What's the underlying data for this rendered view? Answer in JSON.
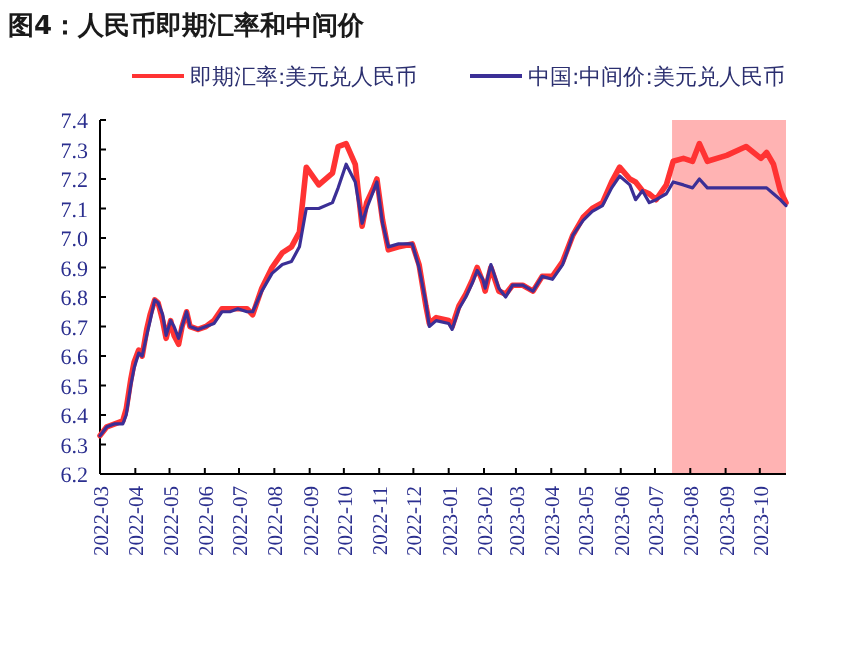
{
  "chart_data": {
    "type": "line",
    "title": "图4：人民币即期汇率和中间价",
    "x": [
      "2022-03-01",
      "2022-03-07",
      "2022-03-14",
      "2022-03-21",
      "2022-03-24",
      "2022-03-28",
      "2022-03-31",
      "2022-04-04",
      "2022-04-07",
      "2022-04-11",
      "2022-04-14",
      "2022-04-18",
      "2022-04-21",
      "2022-04-25",
      "2022-04-28",
      "2022-05-02",
      "2022-05-05",
      "2022-05-09",
      "2022-05-12",
      "2022-05-16",
      "2022-05-19",
      "2022-05-26",
      "2022-06-02",
      "2022-06-09",
      "2022-06-16",
      "2022-06-23",
      "2022-06-30",
      "2022-07-08",
      "2022-07-13",
      "2022-07-21",
      "2022-07-30",
      "2022-08-08",
      "2022-08-16",
      "2022-08-23",
      "2022-08-29",
      "2022-09-09",
      "2022-09-21",
      "2022-09-26",
      "2022-10-03",
      "2022-10-11",
      "2022-10-17",
      "2022-10-21",
      "2022-10-27",
      "2022-10-30",
      "2022-11-04",
      "2022-11-09",
      "2022-11-18",
      "2022-11-30",
      "2022-12-06",
      "2022-12-12",
      "2022-12-15",
      "2022-12-21",
      "2023-01-01",
      "2023-01-04",
      "2023-01-10",
      "2023-01-16",
      "2023-01-22",
      "2023-01-26",
      "2023-01-31",
      "2023-02-02",
      "2023-02-07",
      "2023-02-14",
      "2023-02-20",
      "2023-02-26",
      "2023-03-07",
      "2023-03-16",
      "2023-03-24",
      "2023-04-02",
      "2023-04-11",
      "2023-04-20",
      "2023-04-29",
      "2023-05-07",
      "2023-05-16",
      "2023-05-24",
      "2023-05-31",
      "2023-06-09",
      "2023-06-14",
      "2023-06-20",
      "2023-06-26",
      "2023-07-02",
      "2023-07-11",
      "2023-07-17",
      "2023-07-26",
      "2023-08-03",
      "2023-08-09",
      "2023-08-16",
      "2023-09-02",
      "2023-09-19",
      "2023-10-02",
      "2023-10-07",
      "2023-10-13",
      "2023-10-19",
      "2023-10-24"
    ],
    "series": [
      {
        "name": "即期汇率:美元兑人民币",
        "color": "#ff3333",
        "values": [
          6.33,
          6.36,
          6.37,
          6.38,
          6.42,
          6.52,
          6.58,
          6.62,
          6.6,
          6.69,
          6.74,
          6.79,
          6.78,
          6.72,
          6.66,
          6.72,
          6.67,
          6.64,
          6.7,
          6.75,
          6.7,
          6.69,
          6.7,
          6.72,
          6.76,
          6.76,
          6.76,
          6.76,
          6.74,
          6.83,
          6.9,
          6.95,
          6.97,
          7.02,
          7.24,
          7.18,
          7.22,
          7.31,
          7.32,
          7.25,
          7.04,
          7.12,
          7.17,
          7.2,
          7.06,
          6.96,
          6.97,
          6.98,
          6.91,
          6.77,
          6.71,
          6.73,
          6.72,
          6.7,
          6.77,
          6.81,
          6.86,
          6.9,
          6.85,
          6.82,
          6.9,
          6.82,
          6.81,
          6.84,
          6.84,
          6.82,
          6.87,
          6.87,
          6.92,
          7.01,
          7.07,
          7.1,
          7.12,
          7.19,
          7.24,
          7.2,
          7.19,
          7.16,
          7.15,
          7.13,
          7.18,
          7.26,
          7.27,
          7.26,
          7.32,
          7.26,
          7.28,
          7.31,
          7.27,
          7.29,
          7.25,
          7.16,
          7.12
        ]
      },
      {
        "name": "中国:中间价:美元兑人民币",
        "color": "#3b2f96",
        "values": [
          6.33,
          6.36,
          6.37,
          6.37,
          6.4,
          6.5,
          6.56,
          6.61,
          6.6,
          6.67,
          6.72,
          6.79,
          6.78,
          6.74,
          6.67,
          6.72,
          6.7,
          6.66,
          6.7,
          6.75,
          6.7,
          6.69,
          6.7,
          6.71,
          6.75,
          6.75,
          6.76,
          6.75,
          6.75,
          6.82,
          6.88,
          6.91,
          6.92,
          6.97,
          7.1,
          7.1,
          7.12,
          7.17,
          7.25,
          7.19,
          7.05,
          7.1,
          7.16,
          7.19,
          7.05,
          6.97,
          6.98,
          6.98,
          6.9,
          6.78,
          6.7,
          6.72,
          6.71,
          6.69,
          6.76,
          6.8,
          6.85,
          6.89,
          6.86,
          6.83,
          6.91,
          6.83,
          6.8,
          6.84,
          6.84,
          6.82,
          6.87,
          6.86,
          6.91,
          7.01,
          7.06,
          7.09,
          7.11,
          7.17,
          7.21,
          7.18,
          7.13,
          7.16,
          7.12,
          7.13,
          7.15,
          7.19,
          7.18,
          7.17,
          7.2,
          7.17,
          7.17,
          7.17,
          7.17,
          7.17,
          7.15,
          7.13,
          7.11
        ]
      }
    ],
    "xlim": [
      "2022-03-01",
      "2023-10-24"
    ],
    "xticks": [
      "2022-03",
      "2022-04",
      "2022-05",
      "2022-06",
      "2022-07",
      "2022-08",
      "2022-09",
      "2022-10",
      "2022-11",
      "2022-12",
      "2023-01",
      "2023-02",
      "2023-03",
      "2023-04",
      "2023-05",
      "2023-06",
      "2023-07",
      "2023-08",
      "2023-09",
      "2023-10"
    ],
    "ylim": [
      6.2,
      7.4
    ],
    "yticks": [
      6.2,
      6.3,
      6.4,
      6.5,
      6.6,
      6.7,
      6.8,
      6.9,
      {
        "value": 7,
        "label": "7.0"
      },
      7.1,
      7.2,
      7.3,
      7.4
    ],
    "bands": [
      {
        "axis": "x",
        "from": "2023-07-16",
        "to": "2023-10-24",
        "color": "#ffb3b3"
      }
    ],
    "legend": "top"
  }
}
